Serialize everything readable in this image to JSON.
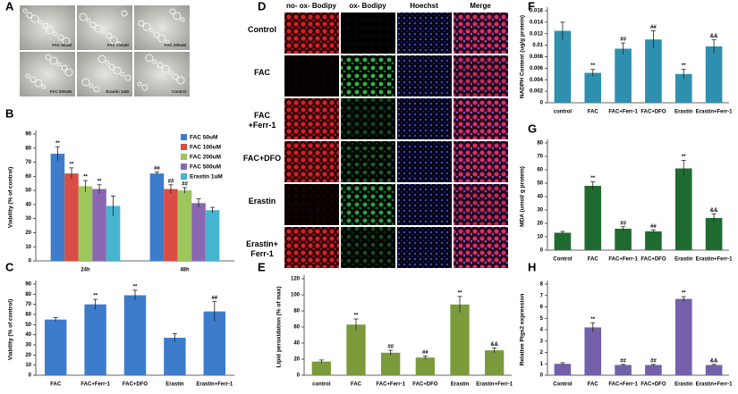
{
  "panels": {
    "A": {
      "letter": "A",
      "captions": [
        "FAC 50uM",
        "FAC 100uM",
        "FAC 200uM",
        "FAC 500uM",
        "Erastin 1uM",
        "Control"
      ]
    },
    "D": {
      "letter": "D",
      "columns": [
        "no- ox- Bodipy",
        "ox- Bodipy",
        "Hoechst",
        "Merge"
      ],
      "rows": [
        "Control",
        "FAC",
        "FAC +Ferr-1",
        "FAC+DFO",
        "Erastin",
        "Erastin+ Ferr-1"
      ]
    }
  },
  "chart_data": [
    {
      "type": "bar",
      "panel": "B",
      "y_label": "Viability (% of control)",
      "categories": [
        "24h",
        "48h"
      ],
      "series": [
        {
          "name": "FAC 50uM",
          "color": "#3d7ccb",
          "values": [
            76,
            62
          ],
          "errors": [
            5,
            1
          ],
          "annotations": [
            "**",
            "##"
          ]
        },
        {
          "name": "FAC 100uM",
          "color": "#d94d45",
          "values": [
            62,
            51
          ],
          "errors": [
            4,
            3
          ],
          "annotations": [
            "**",
            "##"
          ]
        },
        {
          "name": "FAC 200uM",
          "color": "#9cc75a",
          "values": [
            53,
            50
          ],
          "errors": [
            4,
            2
          ],
          "annotations": [
            "**",
            "##"
          ]
        },
        {
          "name": "FAC 500uM",
          "color": "#8a67b3",
          "values": [
            51,
            41
          ],
          "errors": [
            3,
            3
          ],
          "annotations": [
            "**",
            null
          ]
        },
        {
          "name": "Erastin 1uM",
          "color": "#45b5d0",
          "values": [
            39,
            36
          ],
          "errors": [
            7,
            2
          ],
          "annotations": [
            null,
            null
          ]
        }
      ],
      "ylim": [
        0,
        90
      ],
      "yticks": [
        0,
        10,
        20,
        30,
        40,
        50,
        60,
        70,
        80,
        90
      ],
      "legend": "top-right"
    },
    {
      "type": "bar",
      "panel": "C",
      "y_label": "Viability (% of control)",
      "categories": [
        "FAC",
        "FAC+Ferr-1",
        "FAC+DFO",
        "Erastin",
        "Erastin+Ferr-1"
      ],
      "values": [
        55,
        70,
        79,
        37,
        63
      ],
      "errors": [
        2,
        5,
        5,
        4,
        10
      ],
      "annotations": [
        null,
        "**",
        "**",
        null,
        "##"
      ],
      "color": "#3d7ccb",
      "ylim": [
        0,
        90
      ],
      "yticks": [
        0,
        10,
        20,
        30,
        40,
        50,
        60,
        70,
        80,
        90
      ]
    },
    {
      "type": "bar",
      "panel": "E",
      "y_label": "Lipid peroxidation (% of max)",
      "categories": [
        "control",
        "FAC",
        "FAC+Ferr-1",
        "FAC+DFO",
        "Erastin",
        "Erastin+Ferr-1"
      ],
      "values": [
        17,
        63,
        28,
        22,
        88,
        31
      ],
      "errors": [
        2,
        7,
        3,
        2,
        10,
        3
      ],
      "annotations": [
        null,
        "**",
        "##",
        "##",
        "**",
        "&&"
      ],
      "color": "#7a9a3c",
      "ylim": [
        0,
        120
      ],
      "yticks": [
        0,
        20,
        40,
        60,
        80,
        100,
        120
      ]
    },
    {
      "type": "bar",
      "panel": "F",
      "y_label": "NADPH Content (ug/g protein)",
      "categories": [
        "control",
        "FAC",
        "FAC+Ferr-1",
        "FAC+DFO",
        "Erastin",
        "Erastin+Ferr-1"
      ],
      "values": [
        0.0125,
        0.0052,
        0.0094,
        0.011,
        0.005,
        0.0098
      ],
      "errors": [
        0.0015,
        0.0006,
        0.001,
        0.0015,
        0.0008,
        0.0012
      ],
      "annotations": [
        null,
        "**",
        "##",
        "##",
        "**",
        "&&"
      ],
      "color": "#2f8fae",
      "ylim": [
        0,
        0.016
      ],
      "yticks": [
        0,
        0.002,
        0.004,
        0.006,
        0.008,
        0.01,
        0.012,
        0.014,
        0.016
      ]
    },
    {
      "type": "bar",
      "panel": "G",
      "y_label": "MDA (umol/ g protein)",
      "categories": [
        "Control",
        "FAC",
        "FAC+Ferr-1",
        "FAC+DFO",
        "Erastin",
        "Erastin+Ferr-1"
      ],
      "values": [
        13,
        48,
        16,
        14,
        61,
        24
      ],
      "errors": [
        1,
        3,
        1.5,
        1,
        6,
        3
      ],
      "annotations": [
        null,
        "**",
        "##",
        "##",
        "**",
        "&&"
      ],
      "color": "#1f6b2f",
      "ylim": [
        0,
        80
      ],
      "yticks": [
        0,
        10,
        20,
        30,
        40,
        50,
        60,
        70,
        80
      ]
    },
    {
      "type": "bar",
      "panel": "H",
      "y_label": "Relative Ptgs2 expression",
      "categories": [
        "Control",
        "FAC",
        "FAC+Ferr-1",
        "FAC+DFO",
        "Erastin",
        "Erastin+Ferr-1"
      ],
      "values": [
        1,
        4.2,
        0.9,
        0.9,
        6.7,
        0.9
      ],
      "errors": [
        0.1,
        0.4,
        0.05,
        0.05,
        0.2,
        0.05
      ],
      "annotations": [
        null,
        "**",
        "##",
        "##",
        "**",
        "&&"
      ],
      "color": "#7460aa",
      "ylim": [
        0,
        8
      ],
      "yticks": [
        0,
        1,
        2,
        3,
        4,
        5,
        6,
        7,
        8
      ]
    }
  ]
}
